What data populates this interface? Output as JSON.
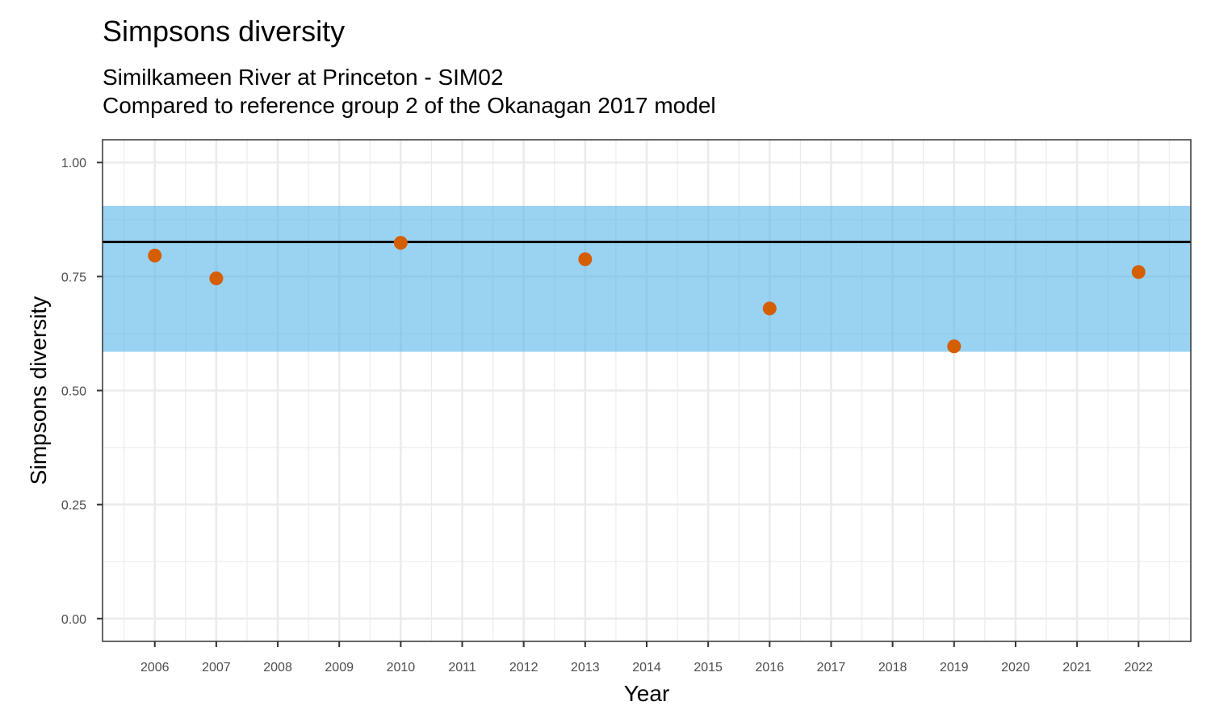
{
  "chart_data": {
    "type": "scatter",
    "title": "Simpsons diversity",
    "subtitle_lines": [
      "Similkameen River at Princeton - SIM02",
      "Compared to reference group 2 of the Okanagan 2017 model"
    ],
    "xlabel": "Year",
    "ylabel": "Simpsons diversity",
    "x_ticks": [
      2006,
      2007,
      2008,
      2009,
      2010,
      2011,
      2012,
      2013,
      2014,
      2015,
      2016,
      2017,
      2018,
      2019,
      2020,
      2021,
      2022
    ],
    "y_ticks": [
      "0.00",
      "0.25",
      "0.50",
      "0.75",
      "1.00"
    ],
    "xlim": [
      2005.15,
      2022.85
    ],
    "ylim": [
      -0.05,
      1.05
    ],
    "grid": true,
    "reference_band": {
      "lower": 0.585,
      "upper": 0.905,
      "color": "#56B4E9"
    },
    "reference_line": {
      "value": 0.826,
      "color": "#000000"
    },
    "points_color": "#D55E00",
    "points": [
      {
        "x": 2006,
        "y": 0.796
      },
      {
        "x": 2007,
        "y": 0.746
      },
      {
        "x": 2010,
        "y": 0.824
      },
      {
        "x": 2013,
        "y": 0.788
      },
      {
        "x": 2016,
        "y": 0.68
      },
      {
        "x": 2019,
        "y": 0.597
      },
      {
        "x": 2022,
        "y": 0.76
      }
    ]
  }
}
